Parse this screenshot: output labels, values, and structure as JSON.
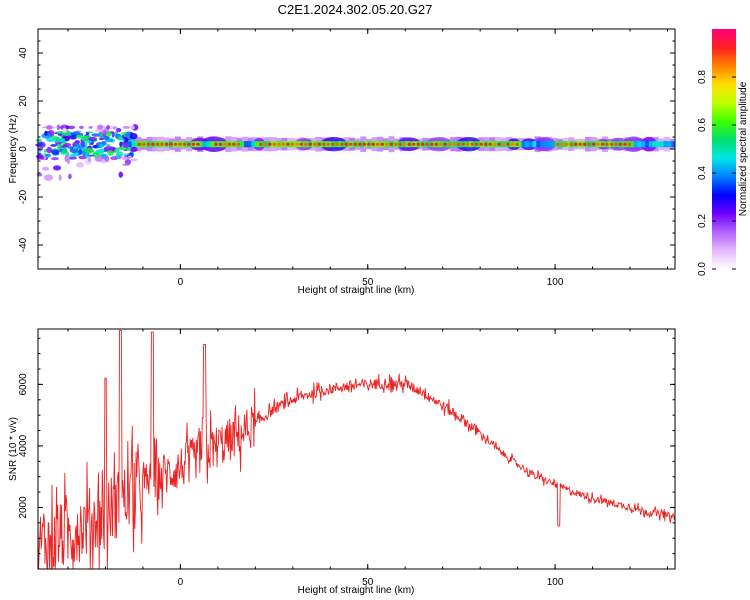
{
  "figure": {
    "title": "C2E1.2024.302.05.20.G27"
  },
  "chart_data": [
    {
      "type": "heatmap",
      "xlabel": "Height of straight line (km)",
      "ylabel": "Frequency (Hz)",
      "xlim": [
        -38,
        132
      ],
      "ylim": [
        -50,
        50
      ],
      "x_ticks": [
        0,
        50,
        100
      ],
      "y_ticks": [
        -40,
        -20,
        0,
        20,
        40
      ],
      "colorbar": {
        "label": "Normalized spectral amplitude",
        "range": [
          0.0,
          1.0
        ],
        "ticks": [
          0.0,
          0.2,
          0.4,
          0.6,
          0.8
        ],
        "colors": [
          "#ffffff",
          "#e6b8ff",
          "#b463ff",
          "#6f00ff",
          "#0000ff",
          "#0080ff",
          "#00e5e5",
          "#00e070",
          "#40ff00",
          "#c0ff00",
          "#ffe000",
          "#ff8000",
          "#ff2020",
          "#ff007f"
        ]
      },
      "ridge": {
        "frequency_hz": 2,
        "x_start": -15,
        "x_end": 132,
        "peak_x_ranges": [
          [
            -12,
            5
          ],
          [
            8,
            16
          ],
          [
            20,
            90
          ],
          [
            100,
            120
          ]
        ]
      },
      "noise_region": {
        "x_range": [
          -38,
          -12
        ],
        "frequency_range_hz": [
          -19,
          9
        ]
      },
      "grid": false
    },
    {
      "type": "line",
      "xlabel": "Height of straight line (km)",
      "ylabel": "SNR (10 * v/v)",
      "xlim": [
        -38,
        132
      ],
      "ylim": [
        0,
        7800
      ],
      "x_ticks": [
        0,
        50,
        100
      ],
      "y_ticks": [
        2000,
        4000,
        6000
      ],
      "series": [
        {
          "color": "#ee2222",
          "trend": {
            "x": [
              -38,
              -30,
              -25,
              -20,
              -15,
              -10,
              -5,
              0,
              5,
              10,
              15,
              20,
              25,
              30,
              35,
              40,
              45,
              50,
              55,
              60,
              65,
              70,
              75,
              80,
              85,
              90,
              95,
              100,
              105,
              110,
              115,
              120,
              125,
              132
            ],
            "y": [
              800,
              1100,
              1500,
              1800,
              2300,
              2700,
              3000,
              3300,
              3700,
              4000,
              4300,
              4700,
              5200,
              5500,
              5700,
              5850,
              5950,
              6000,
              6050,
              6000,
              5750,
              5300,
              4900,
              4400,
              3850,
              3400,
              3000,
              2750,
              2500,
              2300,
              2150,
              2000,
              1850,
              1700
            ]
          },
          "spikes": [
            {
              "x": -16,
              "y": 7750
            },
            {
              "x": -7.5,
              "y": 7700
            },
            {
              "x": 6.5,
              "y": 7300
            },
            {
              "x": -20,
              "y": 6200
            },
            {
              "x": 101,
              "y": 1400
            }
          ]
        }
      ],
      "grid": false
    }
  ]
}
